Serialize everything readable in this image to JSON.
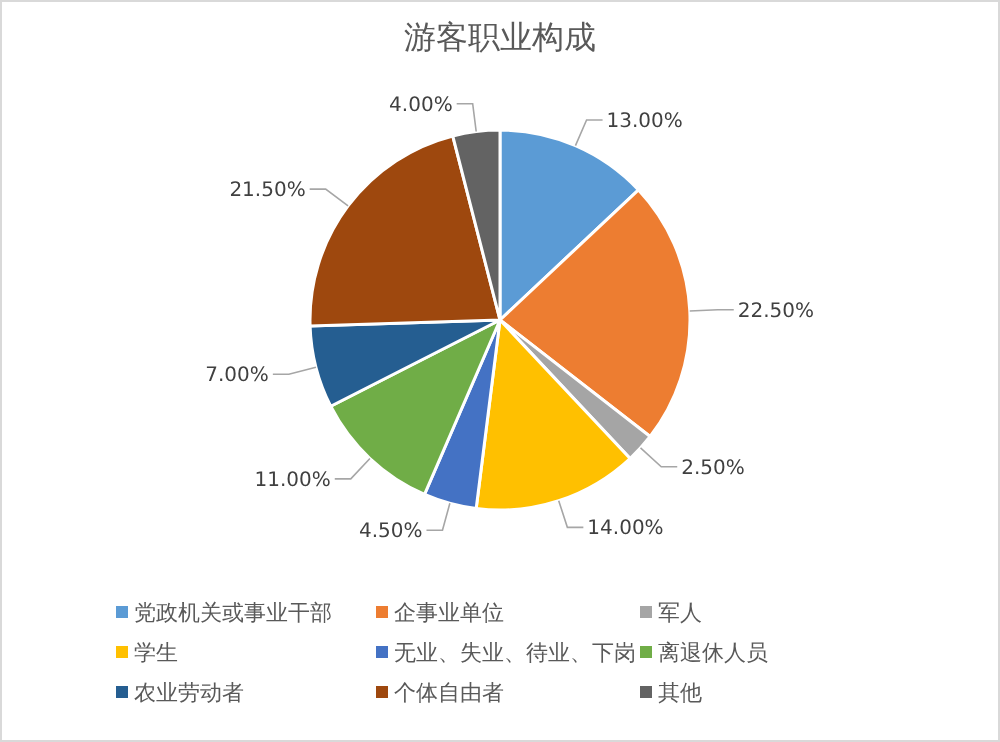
{
  "chart_data": {
    "type": "pie",
    "title": "游客职业构成",
    "categories": [
      "党政机关或事业干部",
      "企事业单位",
      "军人",
      "学生",
      "无业、失业、待业、下岗",
      "离退休人员",
      "农业劳动者",
      "个体自由者",
      "其他"
    ],
    "values": [
      13,
      22.5,
      2.5,
      14,
      4.5,
      11,
      7,
      21.5,
      4
    ],
    "value_labels": [
      "13.00%",
      "22.50%",
      "2.50%",
      "14.00%",
      "4.50%",
      "11.00%",
      "7.00%",
      "21.50%",
      "4.00%"
    ],
    "colors": [
      "#5b9bd5",
      "#ed7d31",
      "#a5a5a5",
      "#ffc000",
      "#4472c4",
      "#70ad47",
      "#255e91",
      "#9e480e",
      "#636363"
    ],
    "legend": "bottom"
  }
}
